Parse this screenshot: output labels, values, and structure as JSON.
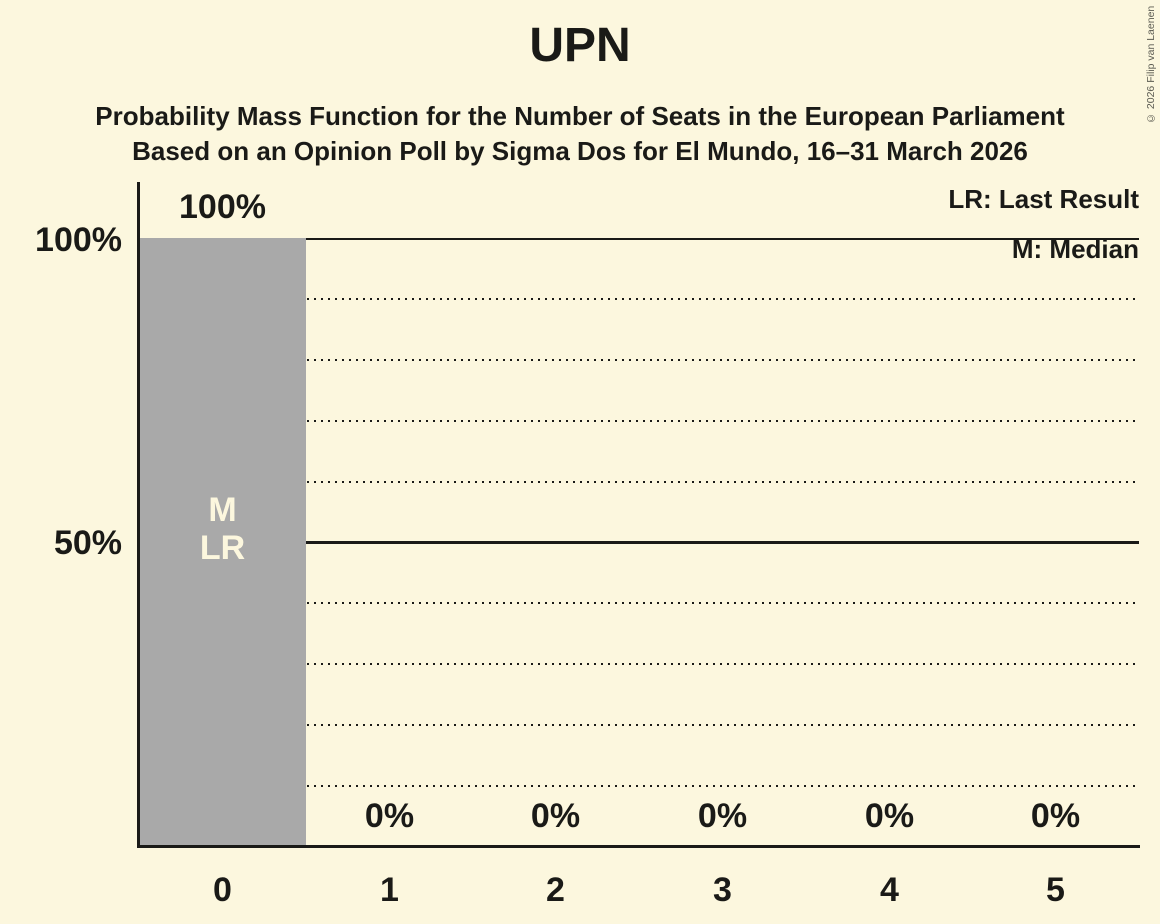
{
  "chart_data": {
    "type": "bar",
    "title": "UPN",
    "subtitle": "Probability Mass Function for the Number of Seats in the European Parliament",
    "source_line": "Based on an Opinion Poll by Sigma Dos for El Mundo, 16–31 March 2026",
    "categories": [
      "0",
      "1",
      "2",
      "3",
      "4",
      "5"
    ],
    "values": [
      100,
      0,
      0,
      0,
      0,
      0
    ],
    "value_labels": [
      "100%",
      "0%",
      "0%",
      "0%",
      "0%",
      "0%"
    ],
    "ylim": [
      0,
      100
    ],
    "ytick_labels": {
      "top": "100%",
      "middle": "50%"
    },
    "grid": {
      "solid_at_percent": [
        100,
        50
      ],
      "dotted_at_percent": [
        90,
        80,
        70,
        60,
        40,
        30,
        20,
        10
      ]
    },
    "legend": {
      "lr": "LR: Last Result",
      "m": "M: Median"
    },
    "bar_annotations": {
      "median": "M",
      "last_result": "LR"
    },
    "median_seats": "0",
    "last_result_seats": "0",
    "colors": {
      "background": "#FCF7DE",
      "bar": "#A9A9A9",
      "text": "#1A1A17",
      "bar_label_text": "#FCF7DE",
      "copyright_text": "#5B5B52"
    }
  },
  "copyright": "© 2026 Filip van Laenen"
}
